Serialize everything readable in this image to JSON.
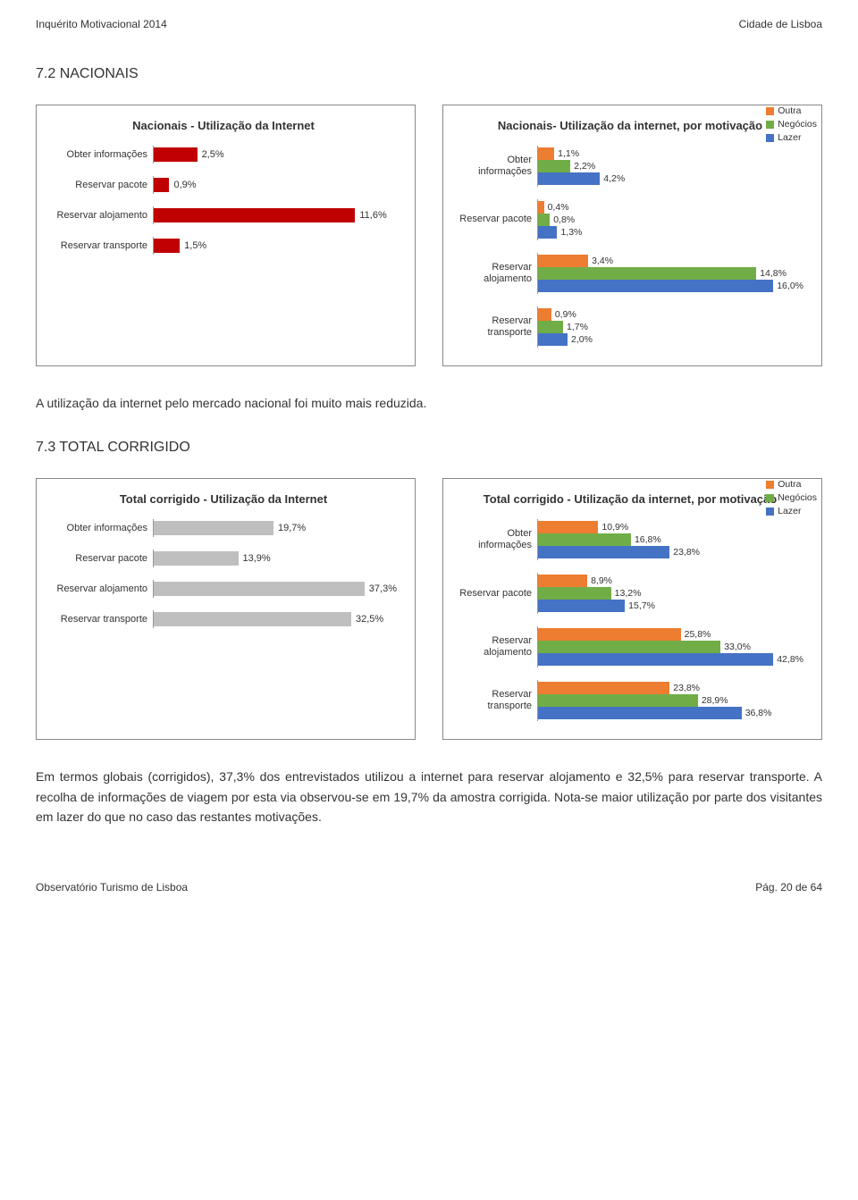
{
  "header": {
    "left": "Inquérito Motivacional 2014",
    "right": "Cidade de Lisboa"
  },
  "footer": {
    "left": "Observatório Turismo de Lisboa",
    "right_prefix": "Pág. ",
    "right_page": "20 de 64"
  },
  "colors": {
    "red": "#c00000",
    "grey": "#bfbfbf",
    "outra": "#ed7d31",
    "negocios": "#70ad47",
    "lazer": "#4472c4"
  },
  "section72": {
    "heading": "7.2 NACIONAIS",
    "chart_left": {
      "title": "Nacionais - Utilização da Internet",
      "max": 14,
      "bar_color": "#c00000",
      "bars": [
        {
          "label": "Obter informações",
          "value": 2.5,
          "text": "2,5%"
        },
        {
          "label": "Reservar pacote",
          "value": 0.9,
          "text": "0,9%"
        },
        {
          "label": "Reservar alojamento",
          "value": 11.6,
          "text": "11,6%"
        },
        {
          "label": "Reservar transporte",
          "value": 1.5,
          "text": "1,5%"
        }
      ]
    },
    "chart_right": {
      "title": "Nacionais- Utilização da internet, por motivação",
      "max": 18,
      "legend": [
        {
          "label": "Outra",
          "color": "#ed7d31"
        },
        {
          "label": "Negócios",
          "color": "#70ad47"
        },
        {
          "label": "Lazer",
          "color": "#4472c4"
        }
      ],
      "groups": [
        {
          "label": "Obter informações",
          "bars": [
            {
              "value": 1.1,
              "text": "1,1%",
              "color": "#ed7d31"
            },
            {
              "value": 2.2,
              "text": "2,2%",
              "color": "#70ad47"
            },
            {
              "value": 4.2,
              "text": "4,2%",
              "color": "#4472c4"
            }
          ]
        },
        {
          "label": "Reservar pacote",
          "bars": [
            {
              "value": 0.4,
              "text": "0,4%",
              "color": "#ed7d31"
            },
            {
              "value": 0.8,
              "text": "0,8%",
              "color": "#70ad47"
            },
            {
              "value": 1.3,
              "text": "1,3%",
              "color": "#4472c4"
            }
          ]
        },
        {
          "label": "Reservar alojamento",
          "bars": [
            {
              "value": 3.4,
              "text": "3,4%",
              "color": "#ed7d31"
            },
            {
              "value": 14.8,
              "text": "14,8%",
              "color": "#70ad47"
            },
            {
              "value": 16.0,
              "text": "16,0%",
              "color": "#4472c4"
            }
          ]
        },
        {
          "label": "Reservar transporte",
          "bars": [
            {
              "value": 0.9,
              "text": "0,9%",
              "color": "#ed7d31"
            },
            {
              "value": 1.7,
              "text": "1,7%",
              "color": "#70ad47"
            },
            {
              "value": 2.0,
              "text": "2,0%",
              "color": "#4472c4"
            }
          ]
        }
      ]
    },
    "caption": "A utilização da internet pelo mercado nacional foi muito mais reduzida."
  },
  "section73": {
    "heading": "7.3 TOTAL CORRIGIDO",
    "chart_left": {
      "title": "Total corrigido - Utilização da Internet",
      "max": 40,
      "bar_color": "#bfbfbf",
      "bars": [
        {
          "label": "Obter informações",
          "value": 19.7,
          "text": "19,7%"
        },
        {
          "label": "Reservar pacote",
          "value": 13.9,
          "text": "13,9%"
        },
        {
          "label": "Reservar alojamento",
          "value": 37.3,
          "text": "37,3%"
        },
        {
          "label": "Reservar transporte",
          "value": 32.5,
          "text": "32,5%"
        }
      ]
    },
    "chart_right": {
      "title": "Total corrigido - Utilização da internet, por motivação",
      "max": 48,
      "legend": [
        {
          "label": "Outra",
          "color": "#ed7d31"
        },
        {
          "label": "Negócios",
          "color": "#70ad47"
        },
        {
          "label": "Lazer",
          "color": "#4472c4"
        }
      ],
      "groups": [
        {
          "label": "Obter informações",
          "bars": [
            {
              "value": 10.9,
              "text": "10,9%",
              "color": "#ed7d31"
            },
            {
              "value": 16.8,
              "text": "16,8%",
              "color": "#70ad47"
            },
            {
              "value": 23.8,
              "text": "23,8%",
              "color": "#4472c4"
            }
          ]
        },
        {
          "label": "Reservar pacote",
          "bars": [
            {
              "value": 8.9,
              "text": "8,9%",
              "color": "#ed7d31"
            },
            {
              "value": 13.2,
              "text": "13,2%",
              "color": "#70ad47"
            },
            {
              "value": 15.7,
              "text": "15,7%",
              "color": "#4472c4"
            }
          ]
        },
        {
          "label": "Reservar alojamento",
          "bars": [
            {
              "value": 25.8,
              "text": "25,8%",
              "color": "#ed7d31"
            },
            {
              "value": 33.0,
              "text": "33,0%",
              "color": "#70ad47"
            },
            {
              "value": 42.8,
              "text": "42,8%",
              "color": "#4472c4"
            }
          ]
        },
        {
          "label": "Reservar transporte",
          "bars": [
            {
              "value": 23.8,
              "text": "23,8%",
              "color": "#ed7d31"
            },
            {
              "value": 28.9,
              "text": "28,9%",
              "color": "#70ad47"
            },
            {
              "value": 36.8,
              "text": "36,8%",
              "color": "#4472c4"
            }
          ]
        }
      ]
    },
    "caption": "Em termos globais (corrigidos), 37,3% dos entrevistados utilizou a internet para reservar alojamento e 32,5% para reservar transporte. A recolha de informações de viagem por esta via observou-se em 19,7% da amostra corrigida. Nota-se maior utilização por parte dos visitantes em lazer do que no caso das restantes motivações."
  }
}
